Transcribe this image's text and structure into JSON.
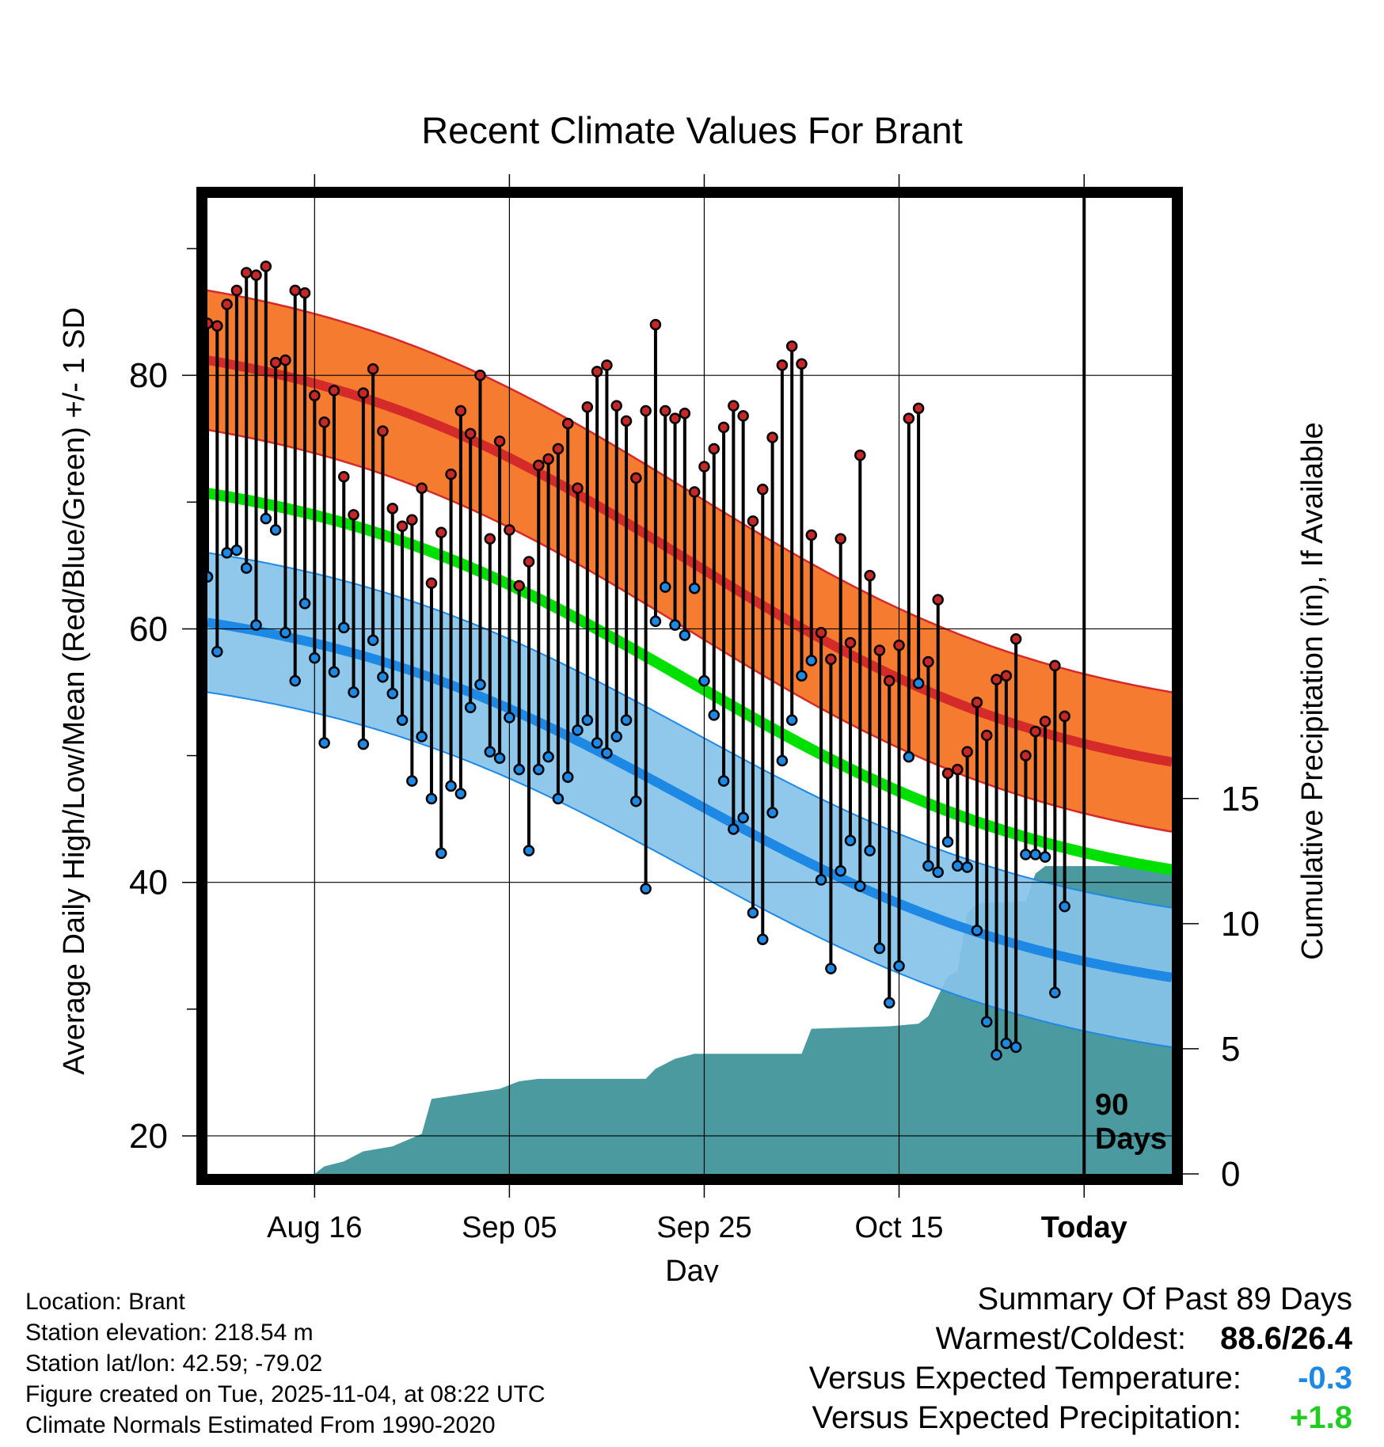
{
  "chart_data": {
    "type": "line",
    "title": "Recent Climate Values For Brant",
    "xlabel": "Day",
    "ylabel_left": "Average Daily High/Low/Mean (Red/Blue/Green) +/- 1 SD",
    "ylabel_right": "Cumulative Precipitation (in), If Available",
    "x_range_days": [
      -90,
      9
    ],
    "ylim_temp": [
      17,
      94
    ],
    "ylim_precip": [
      0,
      39
    ],
    "x_ticks": [
      {
        "day": -79,
        "label": "Aug 16"
      },
      {
        "day": -59,
        "label": "Sep 05"
      },
      {
        "day": -39,
        "label": "Sep 25"
      },
      {
        "day": -19,
        "label": "Oct 15"
      },
      {
        "day": 0,
        "label": "Today"
      }
    ],
    "y_ticks_left": [
      20,
      40,
      60,
      80
    ],
    "y_ticks_right": [
      0,
      5,
      10,
      15
    ],
    "today_marker": {
      "day": 0,
      "label_line1": "90",
      "label_line2": "Days"
    },
    "normal_high": {
      "mean_start": 81.2,
      "mean_end": 49.5,
      "sd": 5.5
    },
    "normal_low": {
      "mean_start": 60.5,
      "mean_end": 32.5,
      "sd": 5.5
    },
    "normal_mean": {
      "start": 70.7,
      "end": 41.0
    },
    "colors": {
      "high_band": "#f47b2f",
      "high_mean": "#d42a2a",
      "low_band": "#86c3e8",
      "low_mean": "#1e88e5",
      "mean_line": "#00e000",
      "precip": "#4a9aa0",
      "high_dot": "#c62828",
      "low_dot": "#1e88e5",
      "positive": "#22cc22",
      "negative": "#1e88e5"
    },
    "highs": [
      84.1,
      83.9,
      85.6,
      86.7,
      88.1,
      87.9,
      88.6,
      81.0,
      81.2,
      86.7,
      86.5,
      78.4,
      76.3,
      78.8,
      72.0,
      69.0,
      78.6,
      80.5,
      75.6,
      69.5,
      68.1,
      68.6,
      71.1,
      63.6,
      67.6,
      72.2,
      77.2,
      75.4,
      80.0,
      67.1,
      74.8,
      67.8,
      63.4,
      65.3,
      72.9,
      73.4,
      74.2,
      76.2,
      71.1,
      77.5,
      80.3,
      80.8,
      77.6,
      76.4,
      71.9,
      77.2,
      84.0,
      77.2,
      76.6,
      77.0,
      70.8,
      72.8,
      74.2,
      75.9,
      77.6,
      76.8,
      68.5,
      71.0,
      75.1,
      80.8,
      82.3,
      80.9,
      67.4,
      59.7,
      57.6,
      67.1,
      58.9,
      73.7,
      64.2,
      58.3,
      55.9,
      58.7,
      76.6,
      77.4,
      57.4,
      62.3,
      48.6,
      48.9,
      50.3,
      54.2,
      51.6,
      56.0,
      56.3,
      59.2,
      50.0,
      51.9,
      52.7,
      57.1,
      53.1
    ],
    "lows": [
      64.1,
      58.2,
      66.0,
      66.2,
      64.8,
      60.3,
      68.7,
      67.8,
      59.7,
      55.9,
      62.0,
      57.7,
      51.0,
      56.6,
      60.1,
      55.0,
      50.9,
      59.1,
      56.2,
      54.9,
      52.8,
      48.0,
      51.5,
      46.6,
      42.3,
      47.6,
      47.0,
      53.8,
      55.6,
      50.3,
      49.8,
      53.0,
      48.9,
      42.5,
      48.9,
      49.9,
      46.6,
      48.3,
      52.0,
      52.8,
      51.0,
      50.2,
      51.5,
      52.8,
      46.4,
      39.5,
      60.6,
      63.3,
      60.3,
      59.5,
      63.2,
      55.9,
      53.2,
      48.0,
      44.2,
      45.1,
      37.6,
      35.5,
      45.5,
      49.6,
      52.8,
      56.3,
      57.5,
      40.2,
      33.2,
      40.9,
      43.3,
      39.7,
      42.5,
      34.8,
      30.5,
      33.4,
      49.9,
      55.7,
      41.3,
      40.8,
      43.2,
      41.3,
      41.2,
      36.2,
      29.0,
      26.4,
      27.3,
      27.0,
      42.2,
      42.2,
      42.0,
      31.3,
      38.1
    ],
    "precip_steps": [
      {
        "day": -90,
        "value": 0.0
      },
      {
        "day": -79,
        "value": 0.0
      },
      {
        "day": -78,
        "value": 0.3
      },
      {
        "day": -76,
        "value": 0.5
      },
      {
        "day": -74,
        "value": 0.9
      },
      {
        "day": -71,
        "value": 1.1
      },
      {
        "day": -68,
        "value": 1.6
      },
      {
        "day": -67,
        "value": 3.0
      },
      {
        "day": -60,
        "value": 3.4
      },
      {
        "day": -58,
        "value": 3.7
      },
      {
        "day": -56,
        "value": 3.8
      },
      {
        "day": -45,
        "value": 3.8
      },
      {
        "day": -44,
        "value": 4.2
      },
      {
        "day": -42,
        "value": 4.6
      },
      {
        "day": -40,
        "value": 4.8
      },
      {
        "day": -29,
        "value": 4.8
      },
      {
        "day": -28,
        "value": 5.8
      },
      {
        "day": -20,
        "value": 5.9
      },
      {
        "day": -17,
        "value": 6.0
      },
      {
        "day": -16,
        "value": 6.3
      },
      {
        "day": -14,
        "value": 7.9
      },
      {
        "day": -13,
        "value": 8.1
      },
      {
        "day": -12,
        "value": 10.4
      },
      {
        "day": -11,
        "value": 10.8
      },
      {
        "day": -6,
        "value": 10.9
      },
      {
        "day": -5,
        "value": 12.0
      },
      {
        "day": -4,
        "value": 12.3
      },
      {
        "day": 9,
        "value": 12.3
      }
    ]
  },
  "info": {
    "location": "Location: Brant",
    "elevation": "Station elevation: 218.54 m",
    "latlon": "Station lat/lon: 42.59; -79.02",
    "created": "Figure created on Tue, 2025-11-04, at 08:22 UTC",
    "normals": "Climate Normals Estimated From 1990-2020"
  },
  "summary": {
    "heading": "Summary Of Past 89 Days",
    "warm_cold_label": "Warmest/Coldest:",
    "warm_cold_value": "88.6/26.4",
    "temp_label": "Versus Expected Temperature:",
    "temp_value": "-0.3",
    "precip_label": "Versus Expected Precipitation:",
    "precip_value": "+1.8"
  }
}
